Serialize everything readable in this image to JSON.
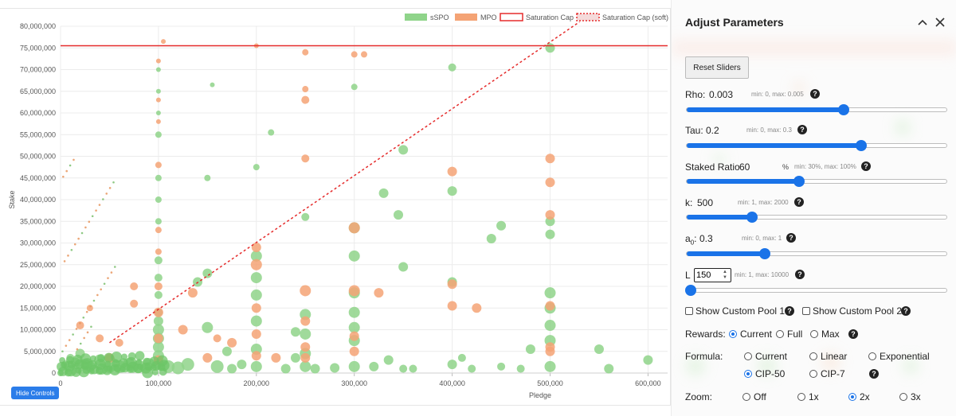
{
  "chart_data": {
    "type": "scatter",
    "title": "",
    "xlabel": "Pledge",
    "ylabel": "Stake",
    "xlim": [
      0,
      620000
    ],
    "ylim": [
      0,
      80000000
    ],
    "x_ticks": [
      "0",
      "100,000",
      "200,000",
      "300,000",
      "400,000",
      "500,000",
      "600,000"
    ],
    "y_ticks": [
      "0",
      "5,000,000",
      "10,000,000",
      "15,000,000",
      "20,000,000",
      "25,000,000",
      "30,000,000",
      "35,000,000",
      "40,000,000",
      "45,000,000",
      "50,000,000",
      "55,000,000",
      "60,000,000",
      "65,000,000",
      "70,000,000",
      "75,000,000",
      "80,000,000"
    ],
    "legend": {
      "position": "top-right",
      "entries": [
        "sSPO",
        "MPO",
        "Saturation Cap",
        "Saturation Cap (soft)"
      ]
    },
    "saturation_cap": 75500000,
    "soft_cap_line": [
      [
        50000,
        7000000
      ],
      [
        530000,
        81000000
      ]
    ],
    "series": [
      {
        "name": "sSPO",
        "color": "#8fd48a",
        "points": [
          [
            5000,
            2000000,
            5
          ],
          [
            10000,
            3500000,
            5
          ],
          [
            15000,
            2500000,
            6
          ],
          [
            20000,
            4500000,
            6
          ],
          [
            25000,
            2000000,
            7
          ],
          [
            30000,
            1500000,
            7
          ],
          [
            40000,
            3000000,
            7
          ],
          [
            45000,
            2500000,
            7
          ],
          [
            50000,
            1500000,
            8
          ],
          [
            50000,
            3000000,
            7
          ],
          [
            55000,
            2000000,
            7
          ],
          [
            60000,
            1500000,
            8
          ],
          [
            70000,
            2000000,
            8
          ],
          [
            80000,
            1500000,
            8
          ],
          [
            90000,
            2000000,
            8
          ],
          [
            100000,
            2000000,
            7
          ],
          [
            100000,
            4000000,
            7
          ],
          [
            100000,
            6000000,
            7
          ],
          [
            100000,
            8000000,
            7
          ],
          [
            100000,
            10000000,
            7
          ],
          [
            100000,
            12000000,
            6
          ],
          [
            100000,
            14000000,
            5
          ],
          [
            100000,
            18000000,
            5
          ],
          [
            100000,
            22000000,
            5
          ],
          [
            100000,
            26000000,
            5
          ],
          [
            100000,
            35000000,
            4
          ],
          [
            100000,
            40000000,
            4
          ],
          [
            100000,
            45000000,
            4
          ],
          [
            100000,
            55000000,
            4
          ],
          [
            100000,
            60000000,
            3
          ],
          [
            100000,
            65000000,
            3
          ],
          [
            100000,
            70000000,
            3
          ],
          [
            110000,
            1500000,
            8
          ],
          [
            120000,
            1200000,
            8
          ],
          [
            130000,
            2000000,
            8
          ],
          [
            140000,
            21000000,
            6
          ],
          [
            150000,
            23000000,
            6
          ],
          [
            150000,
            10500000,
            7
          ],
          [
            150000,
            45000000,
            4
          ],
          [
            155000,
            66500000,
            3
          ],
          [
            160000,
            1500000,
            8
          ],
          [
            170000,
            5000000,
            6
          ],
          [
            175000,
            1000000,
            6
          ],
          [
            185000,
            2000000,
            6
          ],
          [
            200000,
            1500000,
            7
          ],
          [
            200000,
            5500000,
            7
          ],
          [
            200000,
            12000000,
            7
          ],
          [
            200000,
            18000000,
            7
          ],
          [
            200000,
            22000000,
            7
          ],
          [
            200000,
            27000000,
            7
          ],
          [
            200000,
            47500000,
            4
          ],
          [
            215000,
            55500000,
            4
          ],
          [
            230000,
            1000000,
            6
          ],
          [
            240000,
            9500000,
            6
          ],
          [
            240000,
            3500000,
            6
          ],
          [
            250000,
            1500000,
            7
          ],
          [
            250000,
            4500000,
            7
          ],
          [
            250000,
            9000000,
            7
          ],
          [
            250000,
            13500000,
            7
          ],
          [
            250000,
            36000000,
            5
          ],
          [
            260000,
            1000000,
            6
          ],
          [
            280000,
            1200000,
            6
          ],
          [
            300000,
            1500000,
            7
          ],
          [
            300000,
            7500000,
            7
          ],
          [
            300000,
            10500000,
            7
          ],
          [
            300000,
            14000000,
            7
          ],
          [
            300000,
            18500000,
            7
          ],
          [
            300000,
            27000000,
            7
          ],
          [
            300000,
            33500000,
            7
          ],
          [
            300000,
            66000000,
            4
          ],
          [
            320000,
            1500000,
            6
          ],
          [
            330000,
            41500000,
            6
          ],
          [
            335000,
            3000000,
            6
          ],
          [
            345000,
            36500000,
            6
          ],
          [
            350000,
            51500000,
            6
          ],
          [
            350000,
            24500000,
            6
          ],
          [
            360000,
            1000000,
            5
          ],
          [
            400000,
            2000000,
            6
          ],
          [
            400000,
            21000000,
            6
          ],
          [
            400000,
            42000000,
            6
          ],
          [
            400000,
            70500000,
            5
          ],
          [
            420000,
            1000000,
            5
          ],
          [
            440000,
            31000000,
            6
          ],
          [
            450000,
            34000000,
            6
          ],
          [
            470000,
            1000000,
            5
          ],
          [
            480000,
            5500000,
            6
          ],
          [
            500000,
            1500000,
            7
          ],
          [
            500000,
            7500000,
            7
          ],
          [
            500000,
            11000000,
            7
          ],
          [
            500000,
            15000000,
            7
          ],
          [
            500000,
            18500000,
            7
          ],
          [
            500000,
            32000000,
            6
          ],
          [
            500000,
            35000000,
            6
          ],
          [
            500000,
            75000000,
            6
          ],
          [
            550000,
            5500000,
            6
          ],
          [
            560000,
            1000000,
            6
          ],
          [
            600000,
            3000000,
            6
          ],
          [
            350000,
            1000000,
            5
          ],
          [
            410000,
            3500000,
            5
          ],
          [
            450000,
            1500000,
            5
          ]
        ]
      },
      {
        "name": "MPO",
        "color": "#f4a375",
        "points": [
          [
            50000,
            3500000,
            6
          ],
          [
            100000,
            3000000,
            6
          ],
          [
            100000,
            8000000,
            6
          ],
          [
            100000,
            14000000,
            6
          ],
          [
            100000,
            20000000,
            5
          ],
          [
            100000,
            28000000,
            4
          ],
          [
            100000,
            33000000,
            4
          ],
          [
            100000,
            48000000,
            4
          ],
          [
            100000,
            58000000,
            3
          ],
          [
            100000,
            63000000,
            3
          ],
          [
            100000,
            72000000,
            3
          ],
          [
            105000,
            76500000,
            3
          ],
          [
            75000,
            20000000,
            5
          ],
          [
            75000,
            16000000,
            5
          ],
          [
            125000,
            10000000,
            6
          ],
          [
            135000,
            18500000,
            6
          ],
          [
            150000,
            3500000,
            6
          ],
          [
            160000,
            8000000,
            5
          ],
          [
            175000,
            7000000,
            6
          ],
          [
            200000,
            4000000,
            6
          ],
          [
            200000,
            9000000,
            6
          ],
          [
            200000,
            15000000,
            6
          ],
          [
            200000,
            25000000,
            7
          ],
          [
            200000,
            29000000,
            6
          ],
          [
            200000,
            75500000,
            3
          ],
          [
            220000,
            3500000,
            6
          ],
          [
            250000,
            3500000,
            6
          ],
          [
            250000,
            6000000,
            6
          ],
          [
            250000,
            12000000,
            6
          ],
          [
            250000,
            19000000,
            7
          ],
          [
            250000,
            49500000,
            5
          ],
          [
            250000,
            63000000,
            5
          ],
          [
            250000,
            65500000,
            4
          ],
          [
            250000,
            74000000,
            4
          ],
          [
            300000,
            5000000,
            6
          ],
          [
            300000,
            8500000,
            6
          ],
          [
            300000,
            19000000,
            7
          ],
          [
            300000,
            33500000,
            7
          ],
          [
            300000,
            73500000,
            4
          ],
          [
            310000,
            73500000,
            4
          ],
          [
            325000,
            18500000,
            6
          ],
          [
            400000,
            15500000,
            6
          ],
          [
            400000,
            20500000,
            6
          ],
          [
            400000,
            46500000,
            6
          ],
          [
            425000,
            15000000,
            6
          ],
          [
            500000,
            5000000,
            6
          ],
          [
            500000,
            6000000,
            6
          ],
          [
            500000,
            15500000,
            6
          ],
          [
            500000,
            36500000,
            6
          ],
          [
            500000,
            44000000,
            6
          ],
          [
            500000,
            49500000,
            6
          ],
          [
            30000,
            15000000,
            4
          ],
          [
            20000,
            11000000,
            5
          ],
          [
            40000,
            8000000,
            5
          ],
          [
            60000,
            7000000,
            5
          ]
        ]
      }
    ]
  },
  "chart_controls": {
    "hide_label": "Hide Controls"
  },
  "panel": {
    "title": "Adjust Parameters",
    "collapse_icon": "chevron-up-icon",
    "close_icon": "close-icon",
    "reset_label": "Reset Sliders",
    "rho": {
      "label": "Rho:",
      "value": "0.003",
      "hint": "min: 0, max: 0.005",
      "fraction": 0.6
    },
    "tau": {
      "label": "Tau:",
      "value": "0.2",
      "hint": "min: 0, max: 0.3",
      "fraction": 0.667
    },
    "staked": {
      "label": "Staked Ratio",
      "value": "60",
      "unit": "%",
      "hint": "min: 30%, max: 100%",
      "fraction": 0.43
    },
    "k": {
      "label": "k:",
      "value": "500",
      "hint": "min: 1, max: 2000",
      "fraction": 0.25
    },
    "a0": {
      "label": "a",
      "sub": "0",
      "colon": ":",
      "value": "0.3",
      "hint": "min: 0, max: 1",
      "fraction": 0.3
    },
    "l": {
      "label": "L",
      "value": "150",
      "hint": "min: 1, max: 10000",
      "fraction": 0.015
    },
    "custom_pool_1": "Show Custom Pool 1",
    "custom_pool_2": "Show Custom Pool 2",
    "rewards": {
      "label": "Rewards:",
      "options": [
        "Current",
        "Full",
        "Max"
      ],
      "selected": "Current"
    },
    "formula": {
      "label": "Formula:",
      "options": [
        "Current",
        "Linear",
        "Exponential",
        "CIP-50",
        "CIP-7"
      ],
      "selected": "CIP-50"
    },
    "zoom": {
      "label": "Zoom:",
      "options": [
        "Off",
        "1x",
        "2x",
        "3x"
      ],
      "selected": "2x"
    },
    "help_glyph": "?"
  }
}
